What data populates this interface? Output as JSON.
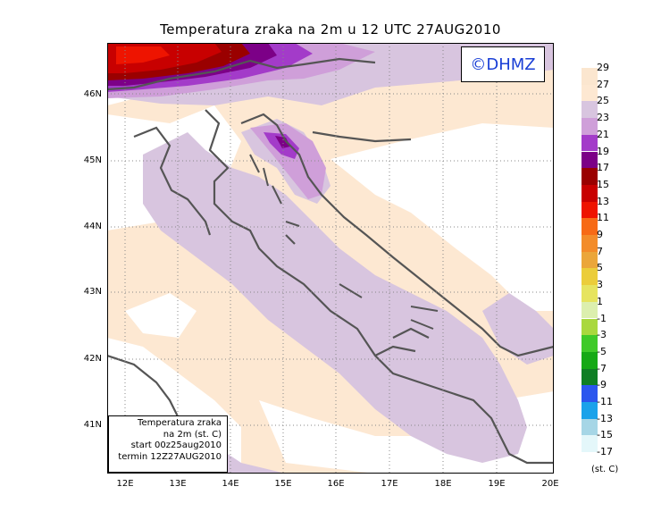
{
  "title": "Temperatura zraka na 2m u 12 UTC 27AUG2010",
  "watermark": "©DHMZ",
  "info_box": {
    "line1": "Temperatura zraka",
    "line2": "na 2m (st. C)",
    "line3": "start 00z25aug2010",
    "line4": "termin 12Z27AUG2010"
  },
  "lat_labels": [
    "46N",
    "45N",
    "44N",
    "43N",
    "42N",
    "41N"
  ],
  "lon_labels": [
    "12E",
    "13E",
    "14E",
    "15E",
    "16E",
    "17E",
    "18E",
    "19E",
    "20E"
  ],
  "legend": {
    "units": "(st. C)",
    "entries": [
      {
        "label": "29",
        "color": "#fbe6cf"
      },
      {
        "label": "27",
        "color": "#fde8d2"
      },
      {
        "label": "25",
        "color": "#d8c5df"
      },
      {
        "label": "23",
        "color": "#cf9fd9"
      },
      {
        "label": "21",
        "color": "#a33bc9"
      },
      {
        "label": "19",
        "color": "#7c0087"
      },
      {
        "label": "17",
        "color": "#9a0000"
      },
      {
        "label": "15",
        "color": "#c80000"
      },
      {
        "label": "13",
        "color": "#ee1400"
      },
      {
        "label": "11",
        "color": "#f76a16"
      },
      {
        "label": "9",
        "color": "#f38c2a"
      },
      {
        "label": "7",
        "color": "#eba63a"
      },
      {
        "label": "5",
        "color": "#ebcd3a"
      },
      {
        "label": "3",
        "color": "#e6e45f"
      },
      {
        "label": "1",
        "color": "#dcefae"
      },
      {
        "label": "-1",
        "color": "#a9d83e"
      },
      {
        "label": "-3",
        "color": "#3fca29"
      },
      {
        "label": "-5",
        "color": "#15a915"
      },
      {
        "label": "-7",
        "color": "#0f7f24"
      },
      {
        "label": "-9",
        "color": "#2b56ee"
      },
      {
        "label": "-11",
        "color": "#1aa2ea"
      },
      {
        "label": "-13",
        "color": "#a6d6e6"
      },
      {
        "label": "-15",
        "color": "#e4f7fa"
      },
      {
        "label": "-17",
        "color": ""
      }
    ]
  }
}
